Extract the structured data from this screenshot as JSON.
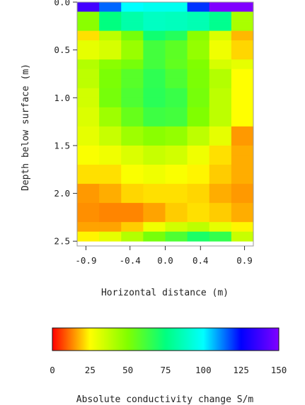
{
  "chart_data": {
    "type": "heatmap",
    "title": "",
    "xlabel": "Horizontal distance (m)",
    "ylabel": "Depth below surface (m)",
    "x_ticks": [
      "-0.9",
      "-0.4",
      "0.0",
      "0.4",
      "0.9"
    ],
    "y_ticks": [
      "0.0",
      "0.5",
      "1.0",
      "1.5",
      "2.0",
      "2.5"
    ],
    "x_tick_values": [
      -0.9,
      -0.4,
      0.0,
      0.4,
      0.9
    ],
    "y_tick_values": [
      0.0,
      0.5,
      1.0,
      1.5,
      2.0,
      2.5
    ],
    "xlim": [
      -1.0,
      1.0
    ],
    "ylim": [
      2.55,
      0.0
    ],
    "x_centers": [
      -0.875,
      -0.625,
      -0.375,
      -0.125,
      0.125,
      0.375,
      0.625,
      0.875
    ],
    "y_centers": [
      0.05,
      0.15,
      0.25,
      0.35,
      0.45,
      0.55,
      0.65,
      0.75,
      0.85,
      0.95,
      1.05,
      1.15,
      1.25,
      1.35,
      1.45,
      1.55,
      1.65,
      1.75,
      1.85,
      1.95,
      2.05,
      2.15,
      2.25,
      2.35,
      2.45
    ],
    "row_height": 0.1,
    "values": [
      [
        138,
        115,
        100,
        97,
        97,
        120,
        150,
        150
      ],
      [
        48,
        75,
        83,
        88,
        87,
        85,
        78,
        42
      ],
      [
        48,
        75,
        83,
        88,
        87,
        85,
        78,
        42
      ],
      [
        22,
        38,
        52,
        72,
        68,
        48,
        32,
        18
      ],
      [
        30,
        33,
        45,
        62,
        57,
        46,
        28,
        21
      ],
      [
        30,
        33,
        45,
        62,
        57,
        46,
        28,
        21
      ],
      [
        40,
        48,
        52,
        62,
        56,
        50,
        33,
        30
      ],
      [
        38,
        51,
        58,
        66,
        60,
        51,
        40,
        25
      ],
      [
        38,
        51,
        58,
        66,
        60,
        51,
        40,
        25
      ],
      [
        34,
        52,
        60,
        67,
        64,
        52,
        38,
        25
      ],
      [
        34,
        52,
        60,
        67,
        64,
        52,
        38,
        25
      ],
      [
        32,
        44,
        55,
        63,
        62,
        50,
        38,
        25
      ],
      [
        32,
        44,
        55,
        63,
        62,
        50,
        38,
        25
      ],
      [
        30,
        36,
        44,
        48,
        46,
        38,
        30,
        15
      ],
      [
        30,
        36,
        44,
        48,
        46,
        38,
        30,
        15
      ],
      [
        26,
        28,
        32,
        36,
        34,
        28,
        22,
        17
      ],
      [
        26,
        28,
        32,
        36,
        34,
        28,
        22,
        17
      ],
      [
        22,
        22,
        26,
        28,
        26,
        24,
        20,
        17
      ],
      [
        22,
        22,
        26,
        28,
        26,
        24,
        20,
        17
      ],
      [
        15,
        17,
        21,
        22,
        22,
        21,
        17,
        15
      ],
      [
        15,
        17,
        21,
        22,
        22,
        21,
        17,
        15
      ],
      [
        14,
        13,
        13,
        16,
        20,
        22,
        20,
        17
      ],
      [
        14,
        13,
        13,
        16,
        20,
        22,
        20,
        17
      ],
      [
        16,
        16,
        20,
        28,
        34,
        38,
        30,
        24
      ],
      [
        24,
        30,
        40,
        52,
        60,
        70,
        65,
        36
      ]
    ],
    "colorbar": {
      "label": "Absolute conductivity change S/m",
      "range": [
        0,
        150
      ],
      "ticks": [
        "0",
        "25",
        "50",
        "75",
        "100",
        "125",
        "150"
      ],
      "tick_values": [
        0,
        25,
        50,
        75,
        100,
        125,
        150
      ],
      "colormap": "rainbow (red at 0 to violet at 150)"
    },
    "grid": false,
    "legend": "colorbar-bottom"
  }
}
